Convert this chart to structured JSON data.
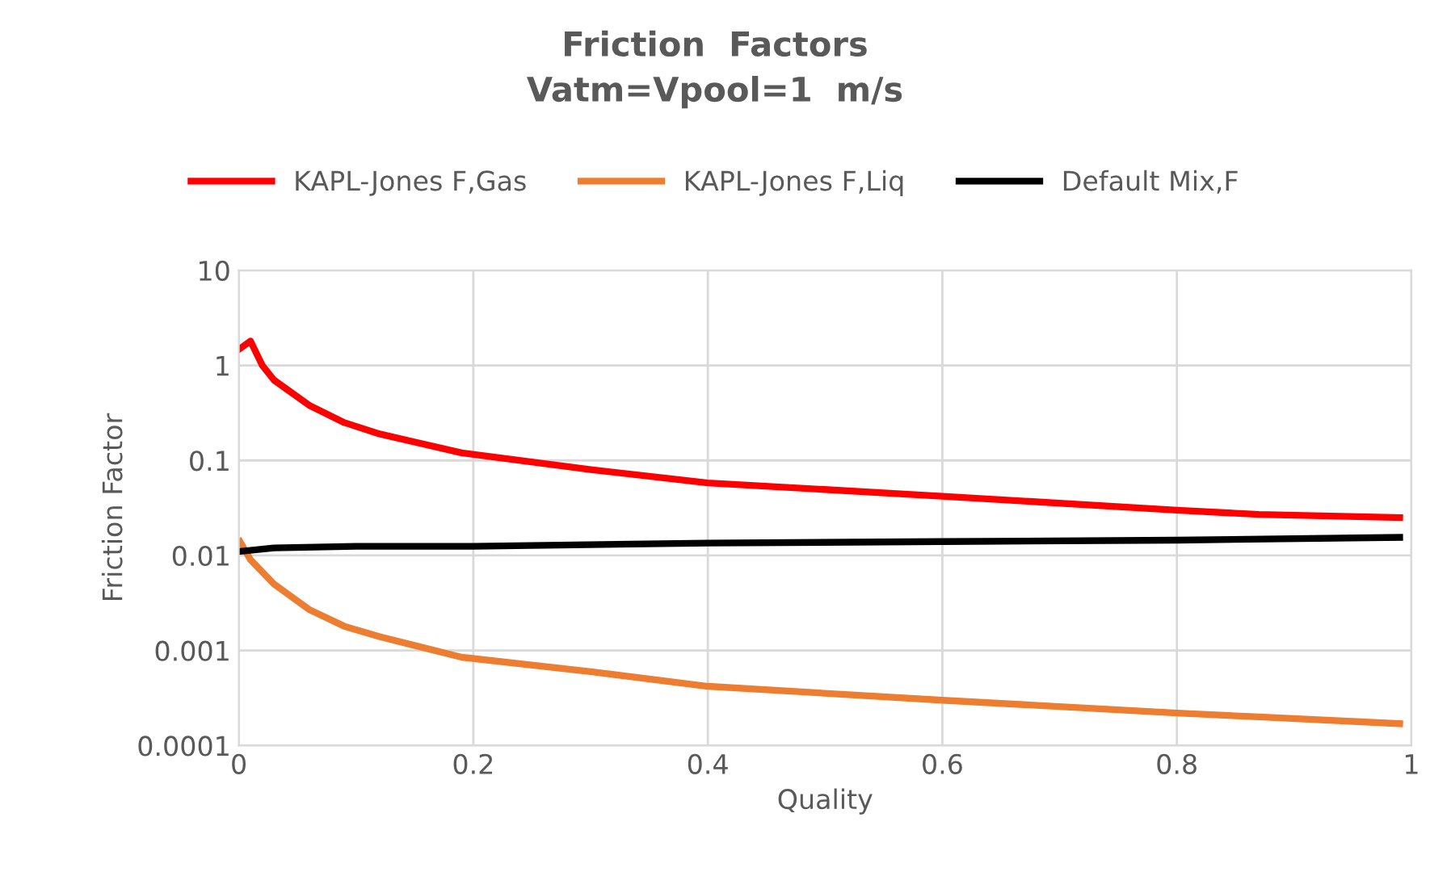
{
  "chart_data": {
    "type": "line",
    "title": "Friction  Factors\nVatm=Vpool=1  m/s",
    "xlabel": "Quality",
    "ylabel": "Friction Factor",
    "log": "y",
    "grid": true,
    "legend": "top",
    "marker": "none",
    "line_style": "solid",
    "xlim": [
      0,
      1
    ],
    "xticks": [
      0,
      0.2,
      0.4,
      0.6,
      0.8,
      1
    ],
    "ylim": [
      0.0001,
      10
    ],
    "yticks": [
      0.0001,
      0.001,
      0.01,
      0.1,
      1,
      10
    ],
    "series": [
      {
        "name": "KAPL-Jones F,Gas",
        "color": "#ff0000",
        "x": [
          0.001,
          0.01,
          0.02,
          0.03,
          0.06,
          0.09,
          0.12,
          0.19,
          0.3,
          0.4,
          0.6,
          0.8,
          0.87,
          0.99
        ],
        "values": [
          1.5,
          1.8,
          1.0,
          0.7,
          0.38,
          0.25,
          0.19,
          0.12,
          0.08,
          0.058,
          0.042,
          0.03,
          0.027,
          0.025
        ]
      },
      {
        "name": "KAPL-Jones F,Liq",
        "color": "#ed7d31",
        "x": [
          0.001,
          0.01,
          0.03,
          0.06,
          0.09,
          0.12,
          0.19,
          0.3,
          0.4,
          0.6,
          0.8,
          0.87,
          0.99
        ],
        "values": [
          0.014,
          0.009,
          0.005,
          0.0027,
          0.0018,
          0.0014,
          0.00085,
          0.0006,
          0.00042,
          0.0003,
          0.00022,
          0.0002,
          0.00017
        ]
      },
      {
        "name": "Default Mix,F",
        "color": "#000000",
        "x": [
          0,
          0.03,
          0.1,
          0.2,
          0.4,
          0.6,
          0.8,
          0.99
        ],
        "values": [
          0.011,
          0.012,
          0.0125,
          0.0125,
          0.0135,
          0.014,
          0.0145,
          0.0155
        ]
      }
    ]
  }
}
